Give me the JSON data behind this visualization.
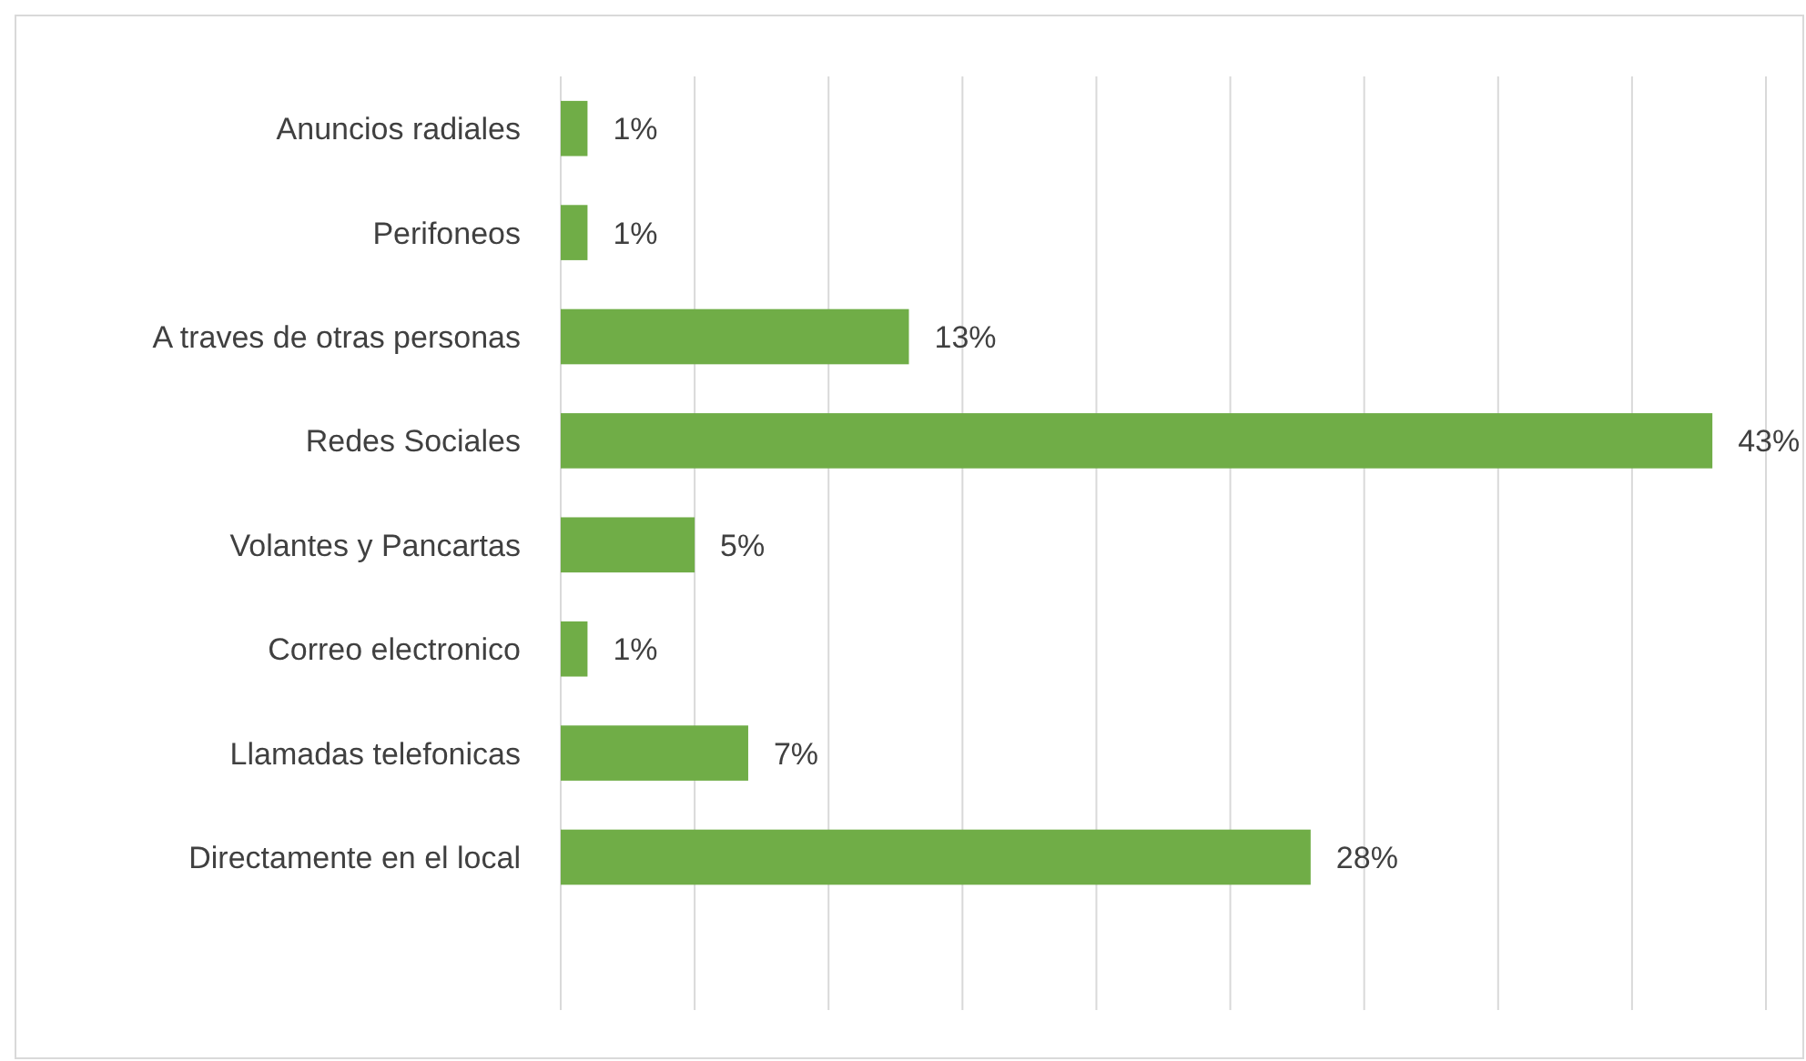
{
  "chart_data": {
    "type": "bar",
    "orientation": "horizontal",
    "categories": [
      "Anuncios radiales",
      "Perifoneos",
      "A traves de otras personas",
      "Redes Sociales",
      "Volantes y Pancartas",
      "Correo electronico",
      "Llamadas telefonicas",
      "Directamente en el local"
    ],
    "values": [
      1,
      1,
      13,
      43,
      5,
      1,
      7,
      28
    ],
    "value_labels": [
      "1%",
      "1%",
      "13%",
      "43%",
      "5%",
      "1%",
      "7%",
      "28%"
    ],
    "color": "#70ad47",
    "xlim": [
      0,
      45
    ],
    "xticks": [
      {
        "value": 0,
        "label": null
      },
      {
        "value": 5,
        "label": null
      },
      {
        "value": 10,
        "label": null
      },
      {
        "value": 15,
        "label": null
      },
      {
        "value": 20,
        "label": null
      },
      {
        "value": 25,
        "label": null
      },
      {
        "value": 30,
        "label": null
      },
      {
        "value": 35,
        "label": null
      },
      {
        "value": 40,
        "label": null
      },
      {
        "value": 45,
        "label": null
      }
    ],
    "grid": "x",
    "tick_labels": "y"
  }
}
